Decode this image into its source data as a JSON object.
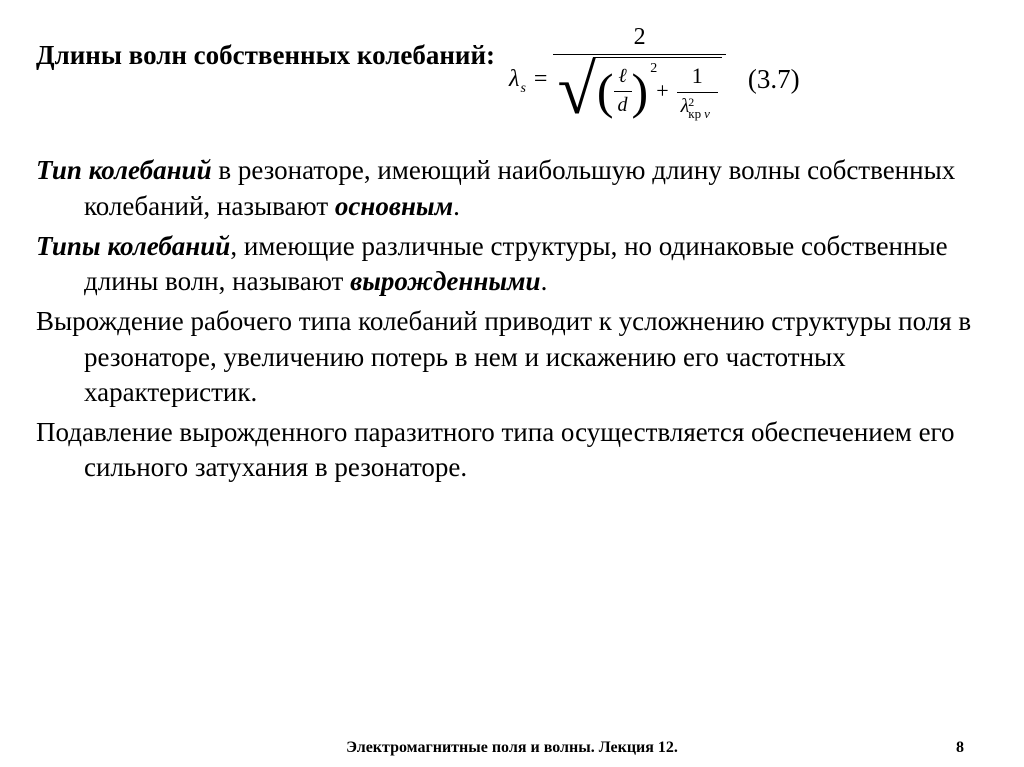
{
  "heading": "Длины волн собственных колебаний:",
  "formula": {
    "lhs_symbol": "λ",
    "lhs_sub": "s",
    "numerator": "2",
    "ell": "ℓ",
    "d": "d",
    "paren_exp": "2",
    "one": "1",
    "lambda": "λ",
    "lambda_sup": "2",
    "lambda_sub1": "кр",
    "lambda_sub2": "ν"
  },
  "eq_number": "(3.7)",
  "paragraphs": {
    "p1_lead": "Тип колебаний",
    "p1_rest": " в резонаторе, имеющий наибольшую длину волны собственных колебаний, называют ",
    "p1_term": "основным",
    "p2_lead": "Типы колебаний",
    "p2_rest": ", имеющие различные структуры, но одинаковые собственные длины волн, называют ",
    "p2_term": "вырожденными",
    "p3": "Вырождение рабочего типа колебаний приводит к усложнению структуры поля в резонаторе, увеличению потерь в нем и искажению его частотных характеристик.",
    "p4": "Подавление вырожденного паразитного типа осуществляется обеспечением его сильного затухания в резонаторе."
  },
  "period": ".",
  "footer": {
    "title": "Электромагнитные поля и волны. Лекция 12.",
    "page": "8"
  },
  "style": {
    "background": "#ffffff",
    "text_color": "#000000",
    "heading_fontsize": 27,
    "body_fontsize": 27,
    "footer_fontsize": 16,
    "font_family": "Times New Roman"
  }
}
